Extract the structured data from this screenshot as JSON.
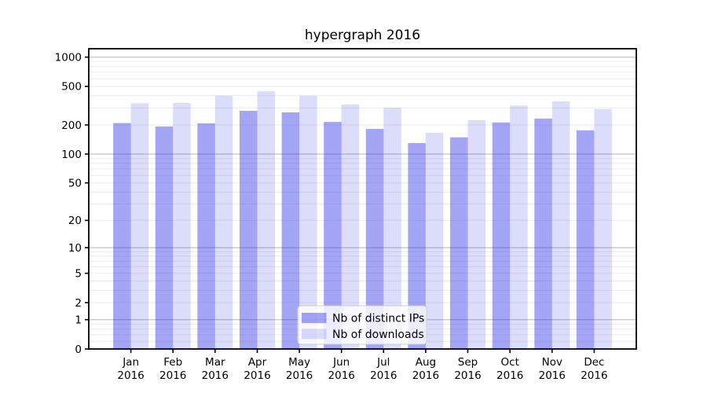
{
  "title": "hypergraph 2016",
  "chart_data": {
    "type": "bar",
    "title": "hypergraph 2016",
    "y_scale": "symlog (log1p)",
    "ylim": [
      0,
      1220
    ],
    "y_ticks": [
      0,
      1,
      2,
      5,
      10,
      20,
      50,
      100,
      200,
      500,
      1000
    ],
    "grid": "horizontal, major lines at 1/10/100/1000, faint minor log subdivisions",
    "categories": [
      "Jan",
      "Feb",
      "Mar",
      "Apr",
      "May",
      "Jun",
      "Jul",
      "Aug",
      "Sep",
      "Oct",
      "Nov",
      "Dec"
    ],
    "x_year_label": "2016",
    "series": [
      {
        "name": "Nb of distinct IPs",
        "color": "rgba(40,40,230,0.42)",
        "values": [
          209,
          193,
          208,
          280,
          270,
          215,
          182,
          130,
          149,
          212,
          233,
          176
        ]
      },
      {
        "name": "Nb of downloads",
        "color": "rgba(40,40,230,0.16)",
        "values": [
          335,
          338,
          400,
          445,
          400,
          325,
          301,
          166,
          224,
          317,
          350,
          292
        ]
      }
    ],
    "legend_position": "lower center"
  },
  "legend": {
    "items": [
      "Nb of distinct IPs",
      "Nb of downloads"
    ]
  },
  "colors": {
    "background": "#ffffff",
    "bar_distinct_ips": "rgba(40,40,230,0.42)",
    "bar_downloads": "rgba(40,40,230,0.16)",
    "grid_major": "#b5b5b5",
    "grid_minor": "#ebebeb",
    "axis_spine": "#000000",
    "tick_text": "#000000",
    "legend_border": "#cccccc",
    "legend_background": "rgba(255,255,255,0.8)"
  }
}
